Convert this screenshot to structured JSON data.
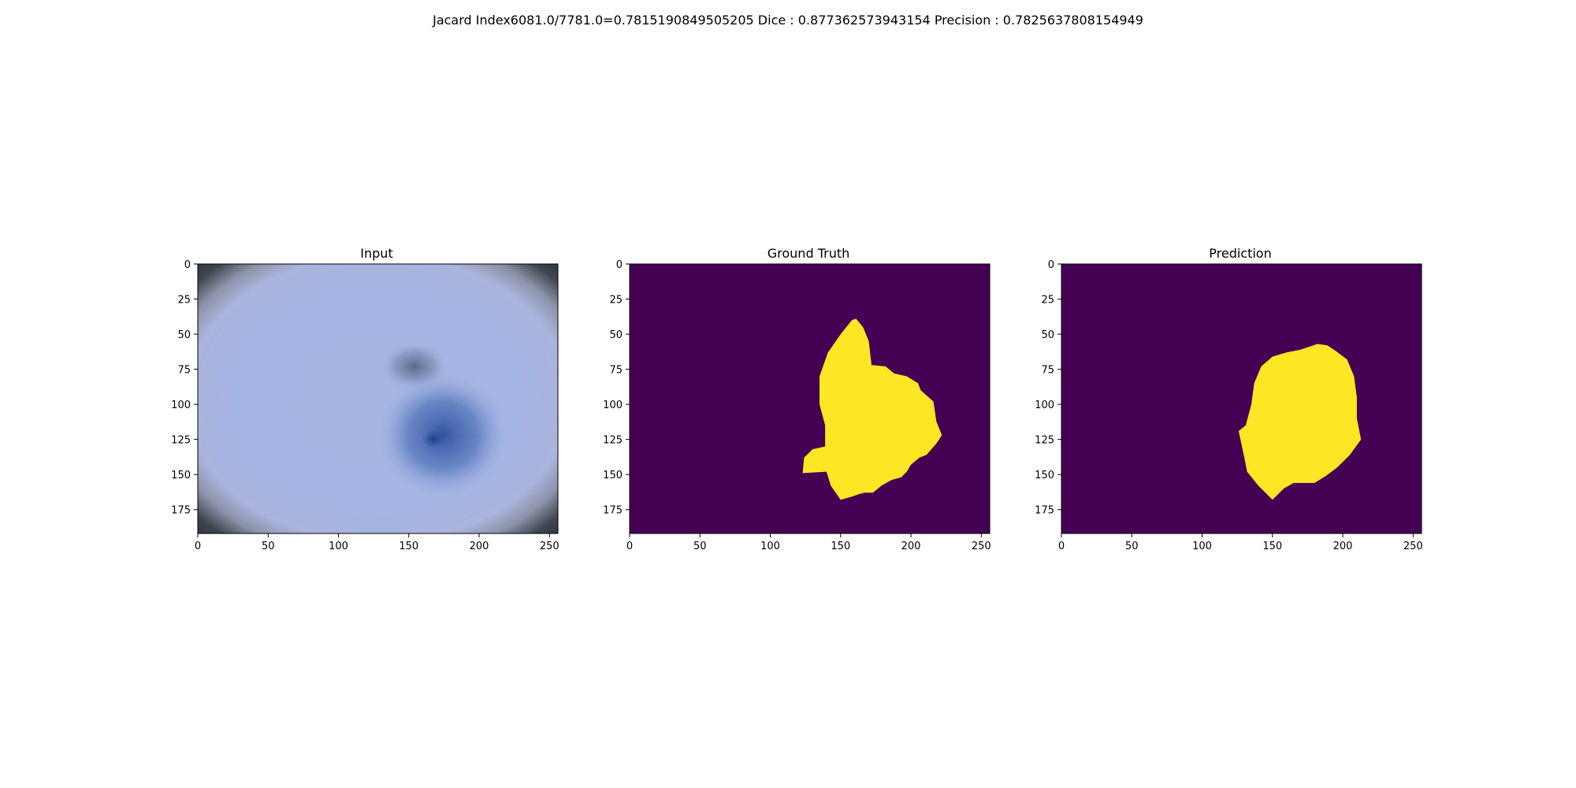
{
  "figure": {
    "suptitle": "Jacard Index6081.0/7781.0=0.7815190849505205 Dice : 0.877362573943154 Precision : 0.7825637808154949"
  },
  "colors": {
    "background": "#ffffff",
    "mask_background": "#440154",
    "mask_foreground": "#fde725",
    "axis": "#000000",
    "skin_base": "#a3b6e4",
    "skin_lesion": "#3a5ea8",
    "vignette": "#2f3640"
  },
  "chart_data": [
    {
      "type": "heatmap",
      "title": "Input",
      "xlabel": "",
      "ylabel": "",
      "image_content": "dermoscopy photograph",
      "xlim": [
        0,
        256
      ],
      "ylim": [
        192,
        0
      ],
      "xticks": [
        0,
        50,
        100,
        150,
        200,
        250
      ],
      "yticks": [
        0,
        25,
        50,
        75,
        100,
        125,
        150,
        175
      ]
    },
    {
      "type": "heatmap",
      "title": "Ground Truth",
      "xlabel": "",
      "ylabel": "",
      "image_content": "binary segmentation mask",
      "xlim": [
        0,
        256
      ],
      "ylim": [
        192,
        0
      ],
      "xticks": [
        0,
        50,
        100,
        150,
        200,
        250
      ],
      "yticks": [
        0,
        25,
        50,
        75,
        100,
        125,
        150,
        175
      ],
      "mask_outline": [
        [
          161,
          39
        ],
        [
          166,
          45
        ],
        [
          170,
          55
        ],
        [
          172,
          72
        ],
        [
          182,
          73
        ],
        [
          188,
          78
        ],
        [
          197,
          80
        ],
        [
          205,
          85
        ],
        [
          207,
          90
        ],
        [
          216,
          98
        ],
        [
          218,
          112
        ],
        [
          222,
          122
        ],
        [
          218,
          128
        ],
        [
          211,
          136
        ],
        [
          206,
          138
        ],
        [
          200,
          143
        ],
        [
          197,
          148
        ],
        [
          193,
          152
        ],
        [
          186,
          154
        ],
        [
          179,
          158
        ],
        [
          173,
          163
        ],
        [
          167,
          163
        ],
        [
          163,
          164
        ],
        [
          157,
          166
        ],
        [
          150,
          168
        ],
        [
          143,
          158
        ],
        [
          140,
          148
        ],
        [
          123,
          149
        ],
        [
          124,
          138
        ],
        [
          130,
          132
        ],
        [
          139,
          130
        ],
        [
          139,
          115
        ],
        [
          135,
          100
        ],
        [
          135,
          80
        ],
        [
          141,
          63
        ],
        [
          150,
          50
        ],
        [
          158,
          40
        ]
      ]
    },
    {
      "type": "heatmap",
      "title": "Prediction",
      "xlabel": "",
      "ylabel": "",
      "image_content": "binary segmentation mask",
      "xlim": [
        0,
        256
      ],
      "ylim": [
        192,
        0
      ],
      "xticks": [
        0,
        50,
        100,
        150,
        200,
        250
      ],
      "yticks": [
        0,
        25,
        50,
        75,
        100,
        125,
        150,
        175
      ],
      "mask_outline": [
        [
          150,
          66
        ],
        [
          160,
          63
        ],
        [
          170,
          61
        ],
        [
          182,
          57
        ],
        [
          189,
          58
        ],
        [
          195,
          62
        ],
        [
          203,
          68
        ],
        [
          208,
          80
        ],
        [
          210,
          95
        ],
        [
          210,
          110
        ],
        [
          213,
          125
        ],
        [
          205,
          136
        ],
        [
          196,
          145
        ],
        [
          188,
          151
        ],
        [
          180,
          156
        ],
        [
          165,
          156
        ],
        [
          158,
          160
        ],
        [
          150,
          168
        ],
        [
          140,
          158
        ],
        [
          132,
          148
        ],
        [
          130,
          138
        ],
        [
          126,
          119
        ],
        [
          131,
          115
        ],
        [
          135,
          100
        ],
        [
          137,
          85
        ],
        [
          142,
          73
        ]
      ]
    }
  ]
}
